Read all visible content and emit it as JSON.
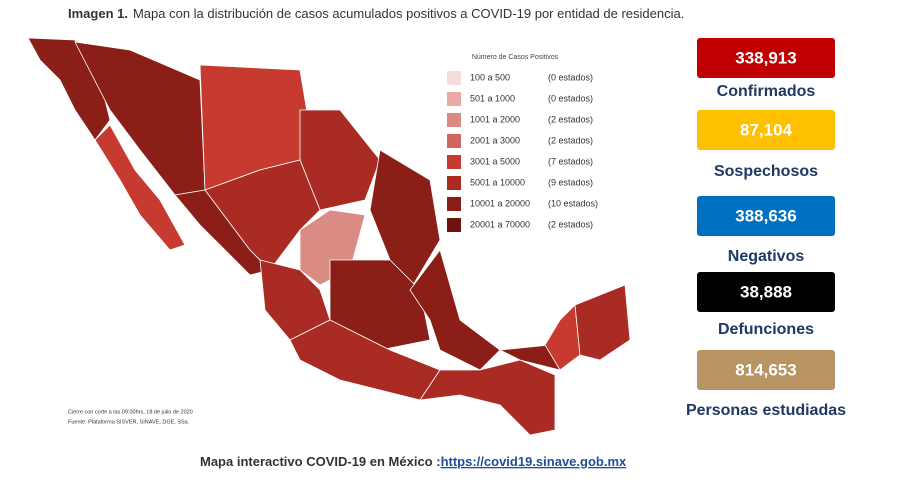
{
  "title": {
    "label": "Imagen 1.",
    "text": "Mapa con la distribución de casos acumulados positivos a COVID-19 por entidad de residencia."
  },
  "legend": {
    "title": "Número de Casos Positivos",
    "items": [
      {
        "range": "100 a 500",
        "count": "(0 estados)",
        "color": "#f6dcd9"
      },
      {
        "range": "501 a 1000",
        "count": "(0 estados)",
        "color": "#e9aaa5"
      },
      {
        "range": "1001 a 2000",
        "count": "(2 estados)",
        "color": "#d98b84"
      },
      {
        "range": "2001 a 3000",
        "count": "(2 estados)",
        "color": "#d1645c"
      },
      {
        "range": "3001 a 5000",
        "count": "(7 estados)",
        "color": "#c73a30"
      },
      {
        "range": "5001 a 10000",
        "count": "(9 estados)",
        "color": "#a92b23"
      },
      {
        "range": "10001 a 20000",
        "count": "(10 estados)",
        "color": "#8c1e18"
      },
      {
        "range": "20001 a 70000",
        "count": "(2 estados)",
        "color": "#6e1410"
      }
    ]
  },
  "stats": [
    {
      "value": "338,913",
      "label": "Confirmados",
      "color": "#c00000",
      "text_color": "#ffffff"
    },
    {
      "value": "87,104",
      "label": "Sospechosos",
      "color": "#ffc000",
      "text_color": "#ffffff"
    },
    {
      "value": "388,636",
      "label": "Negativos",
      "color": "#0070c0",
      "text_color": "#ffffff"
    },
    {
      "value": "38,888",
      "label": "Defunciones",
      "color": "#000000",
      "text_color": "#ffffff"
    },
    {
      "value": "814,653",
      "label": "Personas estudiadas",
      "color": "#b89462",
      "text_color": "#ffffff"
    }
  ],
  "notes": [
    "Cierre con corte a las 09:00hrs, 18 de julio de 2020",
    "Fuente: Plataforma SISVER, SINAVE, DGE, SSa."
  ],
  "footer": {
    "text": "Mapa interactivo COVID-19 en México :",
    "link": "https://covid19.sinave.gob.mx"
  }
}
